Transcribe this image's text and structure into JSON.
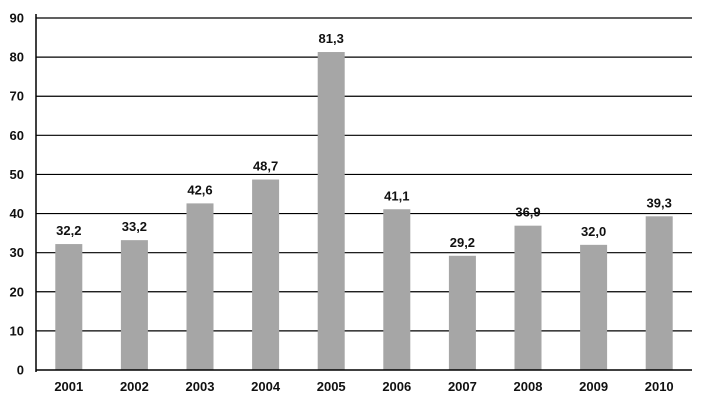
{
  "chart_data": {
    "type": "bar",
    "categories": [
      "2001",
      "2002",
      "2003",
      "2004",
      "2005",
      "2006",
      "2007",
      "2008",
      "2009",
      "2010"
    ],
    "values": [
      32.2,
      33.2,
      42.6,
      48.7,
      81.3,
      41.1,
      29.2,
      36.9,
      32.0,
      39.3
    ],
    "value_labels": [
      "32,2",
      "33,2",
      "42,6",
      "48,7",
      "81,3",
      "41,1",
      "29,2",
      "36,9",
      "32,0",
      "39,3"
    ],
    "yticks": [
      0,
      10,
      20,
      30,
      40,
      50,
      60,
      70,
      80,
      90
    ],
    "ylim": [
      0,
      90
    ],
    "grid": true,
    "title": "",
    "xlabel": "",
    "ylabel": "",
    "colors": {
      "bar": "#a6a6a6",
      "grid": "#000000",
      "axis": "#000000"
    }
  }
}
